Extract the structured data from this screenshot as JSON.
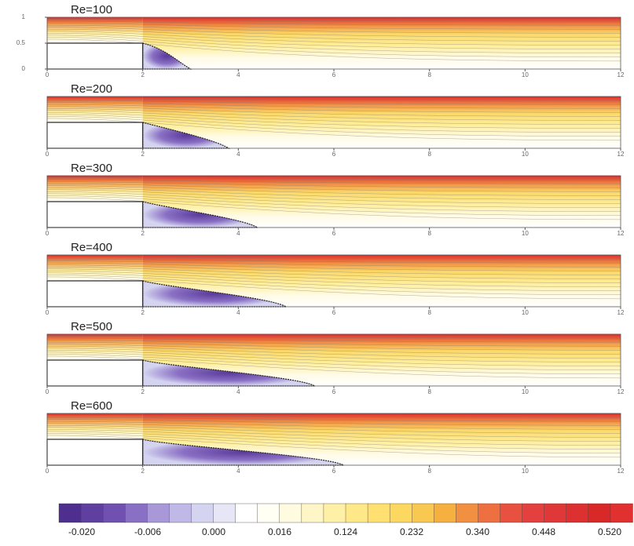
{
  "chart_data": {
    "type": "contour",
    "panels": [
      {
        "title": "Re=100",
        "reattachment_x": 3.0
      },
      {
        "title": "Re=200",
        "reattachment_x": 3.8
      },
      {
        "title": "Re=300",
        "reattachment_x": 4.4
      },
      {
        "title": "Re=400",
        "reattachment_x": 5.0
      },
      {
        "title": "Re=500",
        "reattachment_x": 5.6
      },
      {
        "title": "Re=600",
        "reattachment_x": 6.2
      }
    ],
    "xlim": [
      0,
      12
    ],
    "xticks": [
      0,
      2,
      4,
      6,
      8,
      10,
      12
    ],
    "ylim": [
      0,
      1
    ],
    "yticks": [
      0,
      0.5,
      1
    ],
    "step": [
      2,
      0.5
    ],
    "colorbar": {
      "colors": [
        "#4e2f8f",
        "#5f3f9f",
        "#7050b0",
        "#8a70c4",
        "#a898d8",
        "#c0b8e6",
        "#d4d4f0",
        "#e6e6f6",
        "#ffffff",
        "#fffff4",
        "#fffbe0",
        "#fff6c8",
        "#fff0a8",
        "#ffe888",
        "#ffe070",
        "#fcd860",
        "#f8c850",
        "#f5b040",
        "#f09040",
        "#ee7040",
        "#e85040",
        "#e44040",
        "#e03838",
        "#dd3030",
        "#d82828",
        "#e03030"
      ],
      "ticks": [
        {
          "value": -0.02,
          "label": "-0.020"
        },
        {
          "value": -0.006,
          "label": "-0.006"
        },
        {
          "value": 0,
          "label": "0.000"
        },
        {
          "value": 0.016,
          "label": "0.016"
        },
        {
          "value": 0.124,
          "label": "0.124"
        },
        {
          "value": 0.232,
          "label": "0.232"
        },
        {
          "value": 0.34,
          "label": "0.340"
        },
        {
          "value": 0.448,
          "label": "0.448"
        },
        {
          "value": 0.52,
          "label": "0.520"
        }
      ]
    }
  }
}
